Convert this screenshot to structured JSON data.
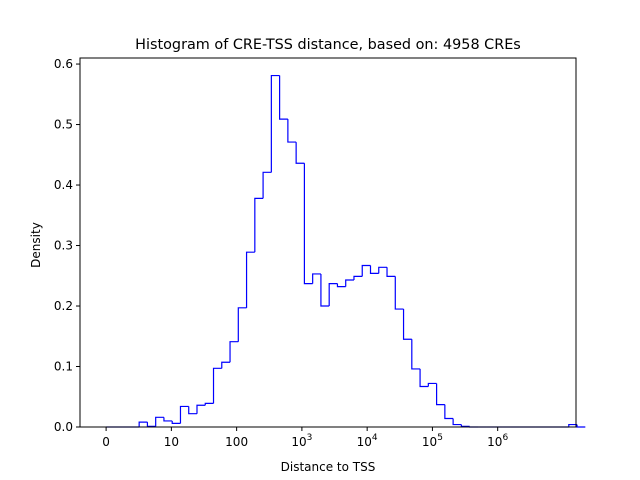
{
  "chart_data": {
    "type": "bar",
    "title": "Histogram of CRE-TSS distance, based on: 4958 CREs",
    "xlabel": "Distance to TSS",
    "ylabel": "Density",
    "x_scale": "log10(distance+1)",
    "xlim": [
      -0.4,
      7.2
    ],
    "ylim": [
      0,
      0.61
    ],
    "grid": false,
    "legend": "none",
    "histtype": "step",
    "color": "#0000ff",
    "xticks": [
      {
        "value": 0,
        "label": "0"
      },
      {
        "value": 1,
        "label": "10"
      },
      {
        "value": 2,
        "label": "100"
      },
      {
        "value": 3,
        "label": "10",
        "superscript": "3"
      },
      {
        "value": 4,
        "label": "10",
        "superscript": "4"
      },
      {
        "value": 5,
        "label": "10",
        "superscript": "5"
      },
      {
        "value": 6,
        "label": "10",
        "superscript": "6"
      }
    ],
    "yticks": [
      {
        "value": 0.0,
        "label": "0.0"
      },
      {
        "value": 0.1,
        "label": "0.1"
      },
      {
        "value": 0.2,
        "label": "0.2"
      },
      {
        "value": 0.3,
        "label": "0.3"
      },
      {
        "value": 0.4,
        "label": "0.4"
      },
      {
        "value": 0.5,
        "label": "0.5"
      },
      {
        "value": 0.6,
        "label": "0.6"
      }
    ],
    "bin_start": 0.0,
    "bin_width": 0.1266,
    "values": [
      0.0,
      0.0,
      0.0,
      0.0,
      0.008,
      0.001,
      0.016,
      0.01,
      0.006,
      0.034,
      0.022,
      0.036,
      0.039,
      0.097,
      0.107,
      0.141,
      0.197,
      0.289,
      0.378,
      0.421,
      0.581,
      0.509,
      0.471,
      0.436,
      0.237,
      0.253,
      0.2,
      0.237,
      0.232,
      0.243,
      0.249,
      0.267,
      0.254,
      0.264,
      0.249,
      0.195,
      0.145,
      0.096,
      0.067,
      0.072,
      0.037,
      0.014,
      0.004,
      0.001,
      0.0,
      0.0,
      0.0,
      0.0,
      0.0,
      0.0,
      0.0,
      0.0,
      0.0,
      0.0,
      0.0,
      0.0,
      0.004,
      0.0
    ]
  }
}
